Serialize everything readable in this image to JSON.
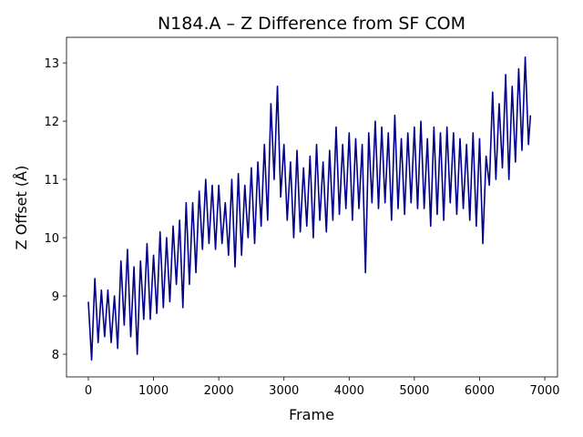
{
  "chart_data": {
    "type": "line",
    "title": "N184.A – Z Difference from SF COM",
    "x_label": "Frame",
    "y_label": "Z Offset (Å)",
    "xlim": [
      -335,
      7195
    ],
    "ylim": [
      7.61,
      13.44
    ],
    "xticks": [
      0,
      1000,
      2000,
      3000,
      4000,
      5000,
      6000,
      7000
    ],
    "yticks": [
      8,
      9,
      10,
      11,
      12,
      13
    ],
    "grid": false,
    "x": [
      0,
      50,
      100,
      150,
      200,
      250,
      300,
      350,
      400,
      450,
      500,
      550,
      600,
      650,
      700,
      750,
      800,
      850,
      900,
      950,
      1000,
      1050,
      1100,
      1150,
      1200,
      1250,
      1300,
      1350,
      1400,
      1450,
      1500,
      1550,
      1600,
      1650,
      1700,
      1750,
      1800,
      1850,
      1900,
      1950,
      2000,
      2050,
      2100,
      2150,
      2200,
      2250,
      2300,
      2350,
      2400,
      2450,
      2500,
      2550,
      2600,
      2650,
      2700,
      2750,
      2800,
      2850,
      2900,
      2950,
      3000,
      3050,
      3100,
      3150,
      3200,
      3250,
      3300,
      3350,
      3400,
      3450,
      3500,
      3550,
      3600,
      3650,
      3700,
      3750,
      3800,
      3850,
      3900,
      3950,
      4000,
      4050,
      4100,
      4150,
      4200,
      4250,
      4300,
      4350,
      4400,
      4450,
      4500,
      4550,
      4600,
      4650,
      4700,
      4750,
      4800,
      4850,
      4900,
      4950,
      5000,
      5050,
      5100,
      5150,
      5200,
      5250,
      5300,
      5350,
      5400,
      5450,
      5500,
      5550,
      5600,
      5650,
      5700,
      5750,
      5800,
      5850,
      5900,
      5950,
      6000,
      6050,
      6100,
      6150,
      6200,
      6250,
      6300,
      6350,
      6400,
      6450,
      6500,
      6550,
      6600,
      6650,
      6700,
      6750,
      6780
    ],
    "series": [
      {
        "color": "#00008b",
        "values": [
          8.9,
          7.9,
          9.3,
          8.2,
          9.1,
          8.3,
          9.1,
          8.2,
          9.0,
          8.1,
          9.6,
          8.5,
          9.8,
          8.3,
          9.5,
          8.0,
          9.6,
          8.6,
          9.9,
          8.6,
          9.7,
          8.7,
          10.1,
          8.8,
          10.0,
          8.9,
          10.2,
          9.2,
          10.3,
          8.8,
          10.6,
          9.2,
          10.6,
          9.4,
          10.8,
          9.8,
          11.0,
          9.9,
          10.9,
          9.8,
          10.9,
          9.9,
          10.6,
          9.7,
          11.0,
          9.5,
          11.1,
          9.7,
          10.9,
          10.0,
          11.2,
          9.9,
          11.3,
          10.2,
          11.6,
          10.3,
          12.3,
          11.0,
          12.6,
          10.7,
          11.6,
          10.3,
          11.3,
          10.0,
          11.5,
          10.1,
          11.2,
          10.2,
          11.4,
          10.0,
          11.6,
          10.3,
          11.3,
          10.1,
          11.5,
          10.3,
          11.9,
          10.4,
          11.6,
          10.5,
          11.8,
          10.3,
          11.7,
          10.5,
          11.6,
          9.4,
          11.8,
          10.6,
          12.0,
          10.5,
          11.9,
          10.6,
          11.8,
          10.3,
          12.1,
          10.5,
          11.7,
          10.4,
          11.8,
          10.6,
          11.9,
          10.5,
          12.0,
          10.5,
          11.7,
          10.2,
          11.9,
          10.4,
          11.8,
          10.3,
          11.9,
          10.6,
          11.8,
          10.4,
          11.7,
          10.5,
          11.6,
          10.3,
          11.8,
          10.2,
          11.7,
          9.9,
          11.4,
          10.9,
          12.5,
          11.0,
          12.3,
          11.2,
          12.8,
          11.0,
          12.6,
          11.3,
          12.9,
          11.5,
          13.1,
          11.6,
          12.1
        ]
      }
    ]
  }
}
